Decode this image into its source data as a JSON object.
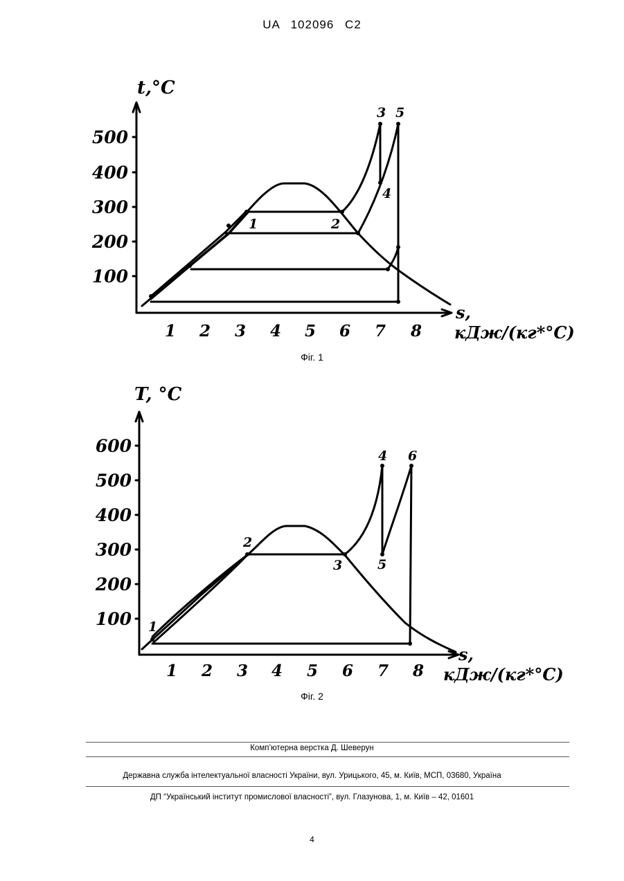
{
  "header": {
    "text": "UA   102096   C2"
  },
  "figures": [
    {
      "caption": "Фіг. 1",
      "ylabel": "t,°C",
      "xlabel_s": "s,",
      "xlabel_unit": "кДж/(кг*°С)",
      "yticks": [
        "100",
        "200",
        "300",
        "400",
        "500"
      ],
      "xticks": [
        "1",
        "2",
        "3",
        "4",
        "5",
        "6",
        "7",
        "8"
      ],
      "points": [
        "1",
        "2",
        "3",
        "4",
        "5"
      ]
    },
    {
      "caption": "Фіг. 2",
      "ylabel": "T, °C",
      "xlabel_s": "s,",
      "xlabel_unit": "кДж/(кг*°С)",
      "yticks": [
        "100",
        "200",
        "300",
        "400",
        "500",
        "600"
      ],
      "xticks": [
        "1",
        "2",
        "3",
        "4",
        "5",
        "6",
        "7",
        "8"
      ],
      "points": [
        "1",
        "2",
        "3",
        "4",
        "5",
        "6"
      ]
    }
  ],
  "footer": {
    "line1": "Комп’ютерна верстка Д. Шеверун",
    "line2": "Державна служба інтелектуальної власності України, вул. Урицького, 45, м. Київ, МСП, 03680, Україна",
    "line3": "ДП “Український інститут промислової власності”, вул. Глазунова, 1, м. Київ – 42, 01601"
  },
  "page_number": "4"
}
